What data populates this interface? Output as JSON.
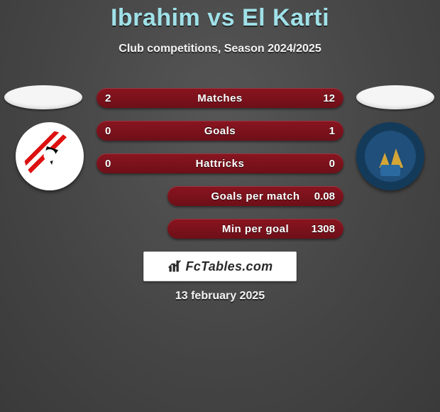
{
  "title_color": "#9fe1e8",
  "bg_from": "#565656",
  "bg_to": "#3a3a3a",
  "title": "Ibrahim vs El Karti",
  "subtitle": "Club competitions, Season 2024/2025",
  "player1": {
    "club": "Zamalek"
  },
  "player2": {
    "club": "Pyramids FC"
  },
  "bar_gradient_from": "#8a1520",
  "bar_gradient_to": "#6e0f18",
  "rows": [
    {
      "label": "Matches",
      "left": "2",
      "right": "12",
      "short": false
    },
    {
      "label": "Goals",
      "left": "0",
      "right": "1",
      "short": false
    },
    {
      "label": "Hattricks",
      "left": "0",
      "right": "0",
      "short": false
    },
    {
      "label": "Goals per match",
      "left": "",
      "right": "0.08",
      "short": true
    },
    {
      "label": "Min per goal",
      "left": "",
      "right": "1308",
      "short": true
    }
  ],
  "footer_brand": "FcTables.com",
  "footer_date": "13 february 2025"
}
